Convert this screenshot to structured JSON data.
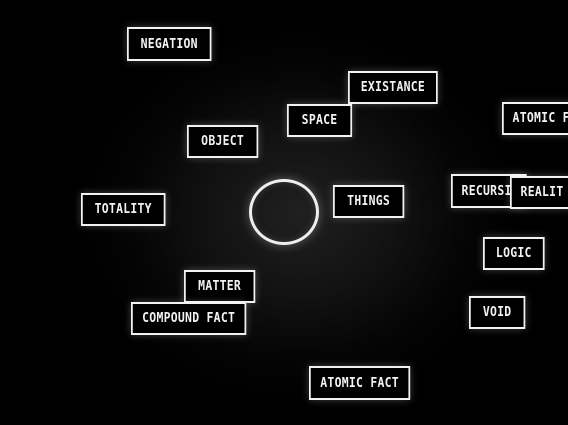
{
  "colors": {
    "background": "#000000",
    "foreground": "#f2f2f2"
  },
  "words": {
    "negation": "NEGATION",
    "existance": "EXISTANCE",
    "space": "SPACE",
    "atomic_fact_partial": "ATOMIC F",
    "object": "OBJECT",
    "totality": "TOTALITY",
    "things": "THINGS",
    "recursion_partial": "RECURSI",
    "reality_partial": "REALIT",
    "logic": "LOGIC",
    "matter": "MATTER",
    "compound_fact": "COMPOUND FACT",
    "void": "VOID",
    "atomic_fact": "ATOMIC FACT"
  }
}
